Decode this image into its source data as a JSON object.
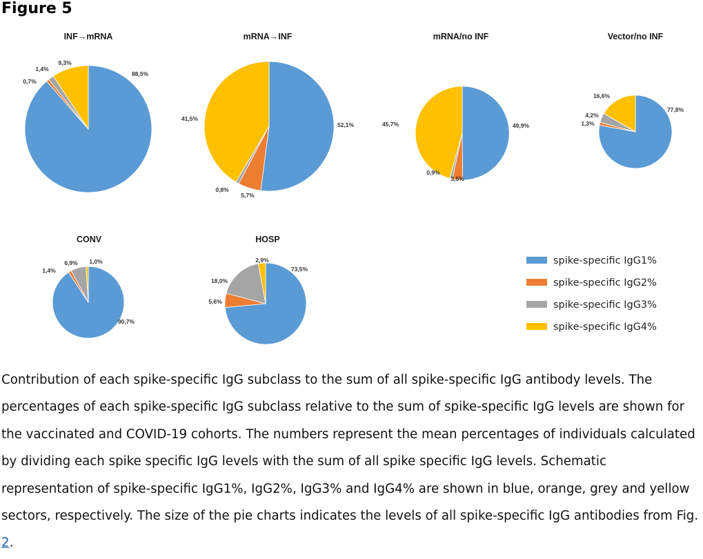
{
  "figure_label": "Figure 5",
  "caption": {
    "text": "Contribution of each spike-specific IgG subclass to the sum of all spike-specific IgG antibody levels. The percentages of each spike-specific IgG subclass relative to the sum of spike-specific IgG levels are shown for the vaccinated and COVID-19 cohorts. The numbers represent the mean percentages of individuals calculated by dividing each spike specific IgG levels with the sum of all spike specific IgG levels. Schematic representation of spike-specific IgG1%, IgG2%, IgG3% and IgG4% are shown in blue, orange, grey and yellow sectors, respectively. The size of the pie charts indicates the levels of all spike-specific IgG antibodies from Fig. ",
    "link_text": "2",
    "end": "."
  },
  "colors": {
    "IgG1": "#5b9bd5",
    "IgG2": "#ed7d31",
    "IgG3": "#a5a5a5",
    "IgG4": "#ffc000"
  },
  "chart_data": [
    {
      "type": "pie",
      "title": "INF→mRNA",
      "categories": [
        "spike-specific IgG1%",
        "spike-specific IgG2%",
        "spike-specific IgG3%",
        "spike-specific IgG4%"
      ],
      "values": [
        88.5,
        0.7,
        1.4,
        9.3
      ],
      "labels": [
        "88,5%",
        "0,7%",
        "1,4%",
        "9,3%"
      ]
    },
    {
      "type": "pie",
      "title": "mRNA→INF",
      "categories": [
        "spike-specific IgG1%",
        "spike-specific IgG2%",
        "spike-specific IgG3%",
        "spike-specific IgG4%"
      ],
      "values": [
        52.1,
        5.7,
        0.8,
        41.5
      ],
      "labels": [
        "52,1%",
        "5,7%",
        "0,8%",
        "41,5%"
      ]
    },
    {
      "type": "pie",
      "title": "mRNA/no INF",
      "categories": [
        "spike-specific IgG1%",
        "spike-specific IgG2%",
        "spike-specific IgG3%",
        "spike-specific IgG4%"
      ],
      "values": [
        49.9,
        3.5,
        0.9,
        45.7
      ],
      "labels": [
        "49,9%",
        "3,5%",
        "0,9%",
        "45,7%"
      ]
    },
    {
      "type": "pie",
      "title": "Vector/no INF",
      "categories": [
        "spike-specific IgG1%",
        "spike-specific IgG2%",
        "spike-specific IgG3%",
        "spike-specific IgG4%"
      ],
      "values": [
        77.8,
        1.3,
        4.2,
        16.6
      ],
      "labels": [
        "77,8%",
        "1,3%",
        "4,2%",
        "16,6%"
      ]
    },
    {
      "type": "pie",
      "title": "CONV",
      "categories": [
        "spike-specific IgG1%",
        "spike-specific IgG2%",
        "spike-specific IgG3%",
        "spike-specific IgG4%"
      ],
      "values": [
        90.7,
        1.4,
        6.9,
        1.0
      ],
      "labels": [
        "90,7%",
        "1,4%",
        "6,9%",
        "1,0%"
      ]
    },
    {
      "type": "pie",
      "title": "HOSP",
      "categories": [
        "spike-specific IgG1%",
        "spike-specific IgG2%",
        "spike-specific IgG3%",
        "spike-specific IgG4%"
      ],
      "values": [
        73.5,
        5.6,
        18.0,
        2.9
      ],
      "labels": [
        "73,5%",
        "5,6%",
        "18,0%",
        "2,9%"
      ]
    }
  ],
  "legend": {
    "items": [
      "spike-specific IgG1%",
      "spike-specific IgG2%",
      "spike-specific IgG3%",
      "spike-specific IgG4%"
    ]
  }
}
